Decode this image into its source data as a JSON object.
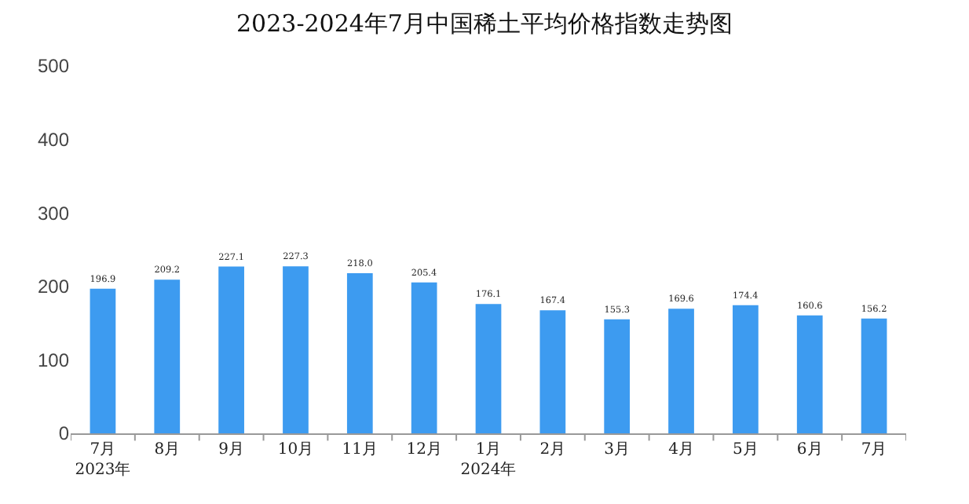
{
  "chart_data": {
    "type": "bar",
    "title": "2023-2024年7月中国稀土平均价格指数走势图",
    "categories": [
      "7月\n2023年",
      "8月",
      "9月",
      "10月",
      "11月",
      "12月",
      "1月\n2024年",
      "2月",
      "3月",
      "4月",
      "5月",
      "6月",
      "7月"
    ],
    "values": [
      196.9,
      209.2,
      227.1,
      227.3,
      218.0,
      205.4,
      176.1,
      167.4,
      155.3,
      169.6,
      174.4,
      160.6,
      156.2
    ],
    "value_labels": [
      "196.9",
      "209.2",
      "227.1",
      "227.3",
      "218.0",
      "205.4",
      "176.1",
      "167.4",
      "155.3",
      "169.6",
      "174.4",
      "160.6",
      "156.2"
    ],
    "color": "#3d9bf0",
    "ylim": [
      0,
      500
    ],
    "yticks": [
      0,
      100,
      200,
      300,
      400,
      500
    ],
    "grid": false,
    "legend": false
  }
}
